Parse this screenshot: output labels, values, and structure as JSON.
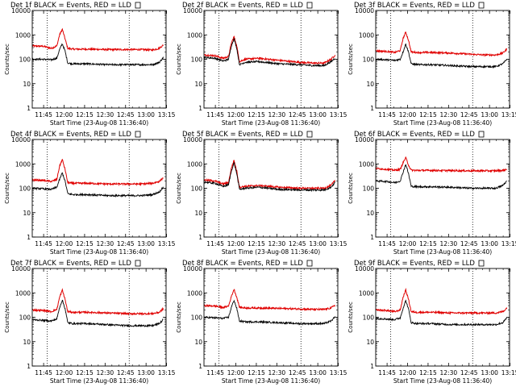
{
  "figure": {
    "xlabel": "Start Time (23-Aug-08 11:36:40)",
    "ylabel": "Counts/sec",
    "x_ticks": [
      "11:45",
      "12:00",
      "12:15",
      "12:30",
      "12:45",
      "13:00",
      "13:15"
    ],
    "y_ticks": [
      "1",
      "10",
      "100",
      "1000",
      "10000"
    ],
    "colors": {
      "events": "#000000",
      "lld": "#e00000",
      "axes": "#000000",
      "background": "#ffffff"
    }
  },
  "chart_data": [
    {
      "type": "line",
      "title": "Det 1f BLACK = Events, RED = LLD",
      "xlabel": "Start Time (23-Aug-08 11:36:40)",
      "ylabel": "Counts/sec",
      "x_unit": "minutes after 11:36:40",
      "xlim": [
        0,
        98
      ],
      "ylim": [
        1,
        10000
      ],
      "y_scale": "log",
      "vlines": [
        11,
        71
      ],
      "series": [
        {
          "name": "Events",
          "x": [
            0,
            8,
            14,
            18,
            20,
            22,
            24,
            26,
            30,
            40,
            55,
            70,
            80,
            88,
            93,
            95,
            96
          ],
          "y": [
            100,
            100,
            95,
            110,
            250,
            430,
            220,
            70,
            65,
            65,
            60,
            60,
            60,
            60,
            75,
            100,
            120
          ]
        },
        {
          "name": "LLD",
          "x": [
            0,
            8,
            14,
            18,
            20,
            22,
            24,
            26,
            30,
            40,
            55,
            70,
            80,
            88,
            93,
            95,
            96
          ],
          "y": [
            350,
            340,
            280,
            350,
            1000,
            1700,
            700,
            280,
            260,
            260,
            250,
            250,
            250,
            240,
            280,
            350,
            380
          ]
        }
      ]
    },
    {
      "type": "line",
      "title": "Det 2f BLACK = Events, RED = LLD",
      "xlabel": "Start Time (23-Aug-08 11:36:40)",
      "ylabel": "Counts/sec",
      "x_unit": "minutes after 11:36:40",
      "xlim": [
        0,
        98
      ],
      "ylim": [
        1,
        10000
      ],
      "y_scale": "log",
      "vlines": [
        11,
        71
      ],
      "series": [
        {
          "name": "Events",
          "x": [
            0,
            8,
            14,
            18,
            20,
            22,
            24,
            26,
            30,
            40,
            55,
            70,
            80,
            88,
            93,
            95,
            96
          ],
          "y": [
            120,
            110,
            85,
            100,
            350,
            700,
            280,
            60,
            75,
            80,
            65,
            60,
            55,
            55,
            80,
            100,
            110
          ]
        },
        {
          "name": "LLD",
          "x": [
            0,
            8,
            14,
            18,
            20,
            22,
            24,
            26,
            30,
            40,
            55,
            70,
            80,
            88,
            93,
            95,
            96
          ],
          "y": [
            150,
            140,
            110,
            130,
            450,
            850,
            350,
            80,
            100,
            110,
            90,
            75,
            70,
            70,
            100,
            130,
            150
          ]
        }
      ]
    },
    {
      "type": "line",
      "title": "Det 3f BLACK = Events, RED = LLD",
      "xlabel": "Start Time (23-Aug-08 11:36:40)",
      "ylabel": "Counts/sec",
      "x_unit": "minutes after 11:36:40",
      "xlim": [
        0,
        98
      ],
      "ylim": [
        1,
        10000
      ],
      "y_scale": "log",
      "vlines": [
        11,
        71
      ],
      "series": [
        {
          "name": "Events",
          "x": [
            0,
            8,
            14,
            18,
            20,
            22,
            24,
            26,
            30,
            40,
            55,
            70,
            80,
            88,
            93,
            95,
            96
          ],
          "y": [
            100,
            95,
            90,
            100,
            200,
            420,
            200,
            65,
            60,
            60,
            55,
            50,
            50,
            50,
            65,
            85,
            100
          ]
        },
        {
          "name": "LLD",
          "x": [
            0,
            8,
            14,
            18,
            20,
            22,
            24,
            26,
            30,
            40,
            55,
            70,
            80,
            88,
            93,
            95,
            96
          ],
          "y": [
            220,
            210,
            190,
            230,
            700,
            1300,
            600,
            200,
            190,
            190,
            180,
            160,
            150,
            150,
            180,
            230,
            260
          ]
        }
      ]
    },
    {
      "type": "line",
      "title": "Det 4f BLACK = Events, RED = LLD",
      "xlabel": "Start Time (23-Aug-08 11:36:40)",
      "ylabel": "Counts/sec",
      "x_unit": "minutes after 11:36:40",
      "xlim": [
        0,
        98
      ],
      "ylim": [
        1,
        10000
      ],
      "y_scale": "log",
      "vlines": [
        11,
        71
      ],
      "series": [
        {
          "name": "Events",
          "x": [
            0,
            8,
            14,
            18,
            20,
            22,
            24,
            26,
            30,
            40,
            55,
            70,
            80,
            88,
            93,
            95,
            96
          ],
          "y": [
            100,
            95,
            90,
            110,
            230,
            430,
            200,
            60,
            55,
            55,
            50,
            50,
            50,
            55,
            70,
            95,
            110
          ]
        },
        {
          "name": "LLD",
          "x": [
            0,
            8,
            14,
            18,
            20,
            22,
            24,
            26,
            30,
            40,
            55,
            70,
            80,
            88,
            93,
            95,
            96
          ],
          "y": [
            220,
            210,
            190,
            230,
            800,
            1500,
            600,
            170,
            160,
            160,
            150,
            150,
            150,
            160,
            190,
            240,
            280
          ]
        }
      ]
    },
    {
      "type": "line",
      "title": "Det 5f BLACK = Events, RED = LLD",
      "xlabel": "Start Time (23-Aug-08 11:36:40)",
      "ylabel": "Counts/sec",
      "x_unit": "minutes after 11:36:40",
      "xlim": [
        0,
        98
      ],
      "ylim": [
        1,
        10000
      ],
      "y_scale": "log",
      "vlines": [
        11,
        71
      ],
      "series": [
        {
          "name": "Events",
          "x": [
            0,
            8,
            14,
            18,
            20,
            22,
            24,
            26,
            30,
            40,
            55,
            70,
            80,
            88,
            93,
            95,
            96
          ],
          "y": [
            180,
            160,
            120,
            140,
            500,
            1100,
            400,
            90,
            100,
            110,
            90,
            85,
            85,
            85,
            110,
            150,
            180
          ]
        },
        {
          "name": "LLD",
          "x": [
            0,
            8,
            14,
            18,
            20,
            22,
            24,
            26,
            30,
            40,
            55,
            70,
            80,
            88,
            93,
            95,
            96
          ],
          "y": [
            220,
            200,
            150,
            170,
            650,
            1400,
            500,
            110,
            120,
            130,
            110,
            100,
            100,
            100,
            130,
            180,
            210
          ]
        }
      ]
    },
    {
      "type": "line",
      "title": "Det 6f BLACK = Events, RED = LLD",
      "xlabel": "Start Time (23-Aug-08 11:36:40)",
      "ylabel": "Counts/sec",
      "x_unit": "minutes after 11:36:40",
      "xlim": [
        0,
        98
      ],
      "ylim": [
        1,
        10000
      ],
      "y_scale": "log",
      "vlines": [
        11,
        71
      ],
      "series": [
        {
          "name": "Events",
          "x": [
            0,
            8,
            14,
            18,
            20,
            22,
            24,
            26,
            30,
            40,
            55,
            70,
            80,
            88,
            93,
            95,
            96
          ],
          "y": [
            200,
            190,
            170,
            200,
            450,
            950,
            400,
            120,
            115,
            115,
            110,
            100,
            100,
            100,
            130,
            170,
            200
          ]
        },
        {
          "name": "LLD",
          "x": [
            0,
            8,
            14,
            18,
            20,
            22,
            24,
            26,
            30,
            40,
            55,
            70,
            80,
            88,
            93,
            95,
            96
          ],
          "y": [
            650,
            600,
            550,
            600,
            1100,
            1800,
            900,
            550,
            540,
            540,
            530,
            520,
            520,
            520,
            540,
            580,
            620
          ]
        }
      ]
    },
    {
      "type": "line",
      "title": "Det 7f BLACK = Events, RED = LLD",
      "xlabel": "Start Time (23-Aug-08 11:36:40)",
      "ylabel": "Counts/sec",
      "x_unit": "minutes after 11:36:40",
      "xlim": [
        0,
        98
      ],
      "ylim": [
        1,
        10000
      ],
      "y_scale": "log",
      "vlines": [
        11,
        71
      ],
      "series": [
        {
          "name": "Events",
          "x": [
            0,
            8,
            14,
            18,
            20,
            22,
            24,
            26,
            30,
            40,
            55,
            70,
            80,
            88,
            93,
            95,
            96
          ],
          "y": [
            80,
            75,
            70,
            85,
            250,
            500,
            230,
            60,
            55,
            55,
            50,
            45,
            45,
            45,
            55,
            70,
            85
          ]
        },
        {
          "name": "LLD",
          "x": [
            0,
            8,
            14,
            18,
            20,
            22,
            24,
            26,
            30,
            40,
            55,
            70,
            80,
            88,
            93,
            95,
            96
          ],
          "y": [
            200,
            190,
            170,
            210,
            650,
            1300,
            550,
            170,
            160,
            160,
            150,
            140,
            140,
            140,
            160,
            200,
            230
          ]
        }
      ]
    },
    {
      "type": "line",
      "title": "Det 8f BLACK = Events, RED = LLD",
      "xlabel": "Start Time (23-Aug-08 11:36:40)",
      "ylabel": "Counts/sec",
      "x_unit": "minutes after 11:36:40",
      "xlim": [
        0,
        98
      ],
      "ylim": [
        1,
        10000
      ],
      "y_scale": "log",
      "vlines": [
        11,
        71
      ],
      "series": [
        {
          "name": "Events",
          "x": [
            0,
            8,
            14,
            18,
            20,
            22,
            24,
            26,
            30,
            40,
            55,
            70,
            80,
            88,
            93,
            95,
            96
          ],
          "y": [
            100,
            95,
            90,
            100,
            250,
            500,
            230,
            70,
            65,
            65,
            60,
            55,
            55,
            55,
            70,
            90,
            105
          ]
        },
        {
          "name": "LLD",
          "x": [
            0,
            8,
            14,
            18,
            20,
            22,
            24,
            26,
            30,
            40,
            55,
            70,
            80,
            88,
            93,
            95,
            96
          ],
          "y": [
            300,
            290,
            250,
            290,
            700,
            1400,
            650,
            260,
            240,
            240,
            230,
            220,
            210,
            210,
            240,
            290,
            320
          ]
        }
      ]
    },
    {
      "type": "line",
      "title": "Det 9f BLACK = Events, RED = LLD",
      "xlabel": "Start Time (23-Aug-08 11:36:40)",
      "ylabel": "Counts/sec",
      "x_unit": "minutes after 11:36:40",
      "xlim": [
        0,
        98
      ],
      "ylim": [
        1,
        10000
      ],
      "y_scale": "log",
      "vlines": [
        11,
        71
      ],
      "series": [
        {
          "name": "Events",
          "x": [
            0,
            8,
            14,
            18,
            20,
            22,
            24,
            26,
            30,
            40,
            55,
            70,
            80,
            88,
            93,
            95,
            96
          ],
          "y": [
            90,
            85,
            80,
            95,
            230,
            480,
            220,
            60,
            55,
            55,
            50,
            50,
            50,
            50,
            60,
            80,
            95
          ]
        },
        {
          "name": "LLD",
          "x": [
            0,
            8,
            14,
            18,
            20,
            22,
            24,
            26,
            30,
            40,
            55,
            70,
            80,
            88,
            93,
            95,
            96
          ],
          "y": [
            200,
            190,
            170,
            200,
            650,
            1300,
            550,
            170,
            160,
            160,
            150,
            150,
            150,
            150,
            170,
            210,
            240
          ]
        }
      ]
    }
  ]
}
